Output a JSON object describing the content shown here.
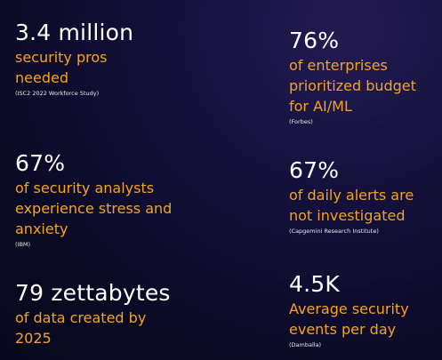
{
  "stats": [
    {
      "value": "3.4 million",
      "desc_lines": [
        "security pros",
        "needed"
      ],
      "source": "(ISC2 2022 Workforce Study)"
    },
    {
      "value": "76%",
      "desc_lines": [
        "of enterprises",
        "prioritized budget",
        "for AI/ML"
      ],
      "source": "(Forbes)"
    },
    {
      "value": "67%",
      "desc_lines": [
        "of security analysts",
        "experience stress and",
        "anxiety"
      ],
      "source": "(IBM)"
    },
    {
      "value": "67%",
      "desc_lines": [
        "of daily alerts are",
        "not investigated"
      ],
      "source": "(Capgemini Research Institute)"
    },
    {
      "value": "79 zettabytes",
      "desc_lines": [
        "of data created by",
        "2025"
      ],
      "source": ""
    },
    {
      "value": "4.5K",
      "desc_lines": [
        "Average security",
        "events per day"
      ],
      "source": "(Damballa)"
    }
  ],
  "colors": {
    "value_text": "#ffffff",
    "description_text": "#f5a31e",
    "source_text": "#e8e8ee",
    "background": "#0e0c2e"
  }
}
